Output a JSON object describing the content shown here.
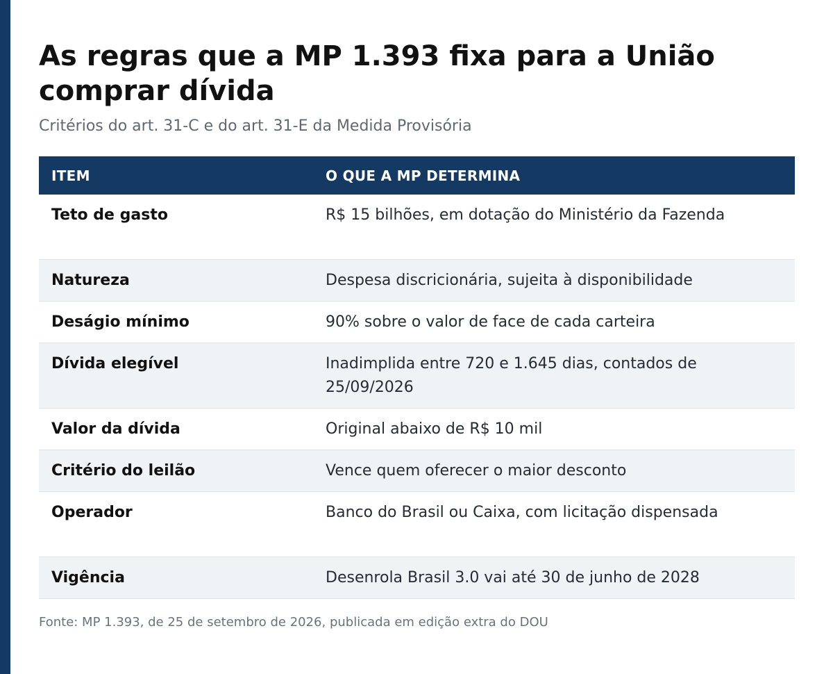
{
  "header": {
    "title": "As regras que a MP 1.393 fixa para a União comprar dívida",
    "subtitle": "Critérios do art. 31-C e do art. 31-E da Medida Provisória"
  },
  "table": {
    "columns": [
      "ITEM",
      "O QUE A MP DETERMINA"
    ],
    "rows": [
      {
        "item": "Teto de gasto",
        "text": "R$ 15 bilhões, em dotação do Ministério da Fazenda"
      },
      {
        "item": "Natureza",
        "text": "Despesa discricionária, sujeita à disponibilidade"
      },
      {
        "item": "Deságio mínimo",
        "text": "90% sobre o valor de face de cada carteira"
      },
      {
        "item": "Dívida elegível",
        "text": "Inadimplida entre 720 e 1.645 dias, contados de 25/09/2026"
      },
      {
        "item": "Valor da dívida",
        "text": "Original abaixo de R$ 10 mil"
      },
      {
        "item": "Critério do leilão",
        "text": "Vence quem oferecer o maior desconto"
      },
      {
        "item": "Operador",
        "text": "Banco do Brasil ou Caixa, com licitação dispensada"
      },
      {
        "item": "Vigência",
        "text": "Desenrola Brasil 3.0 vai até 30 de junho de 2028"
      }
    ]
  },
  "footnote": "Fonte: MP 1.393, de 25 de setembro de 2026, publicada em edição extra do DOU",
  "colors": {
    "accent": "#143a63",
    "stripe": "#eff3f6"
  }
}
